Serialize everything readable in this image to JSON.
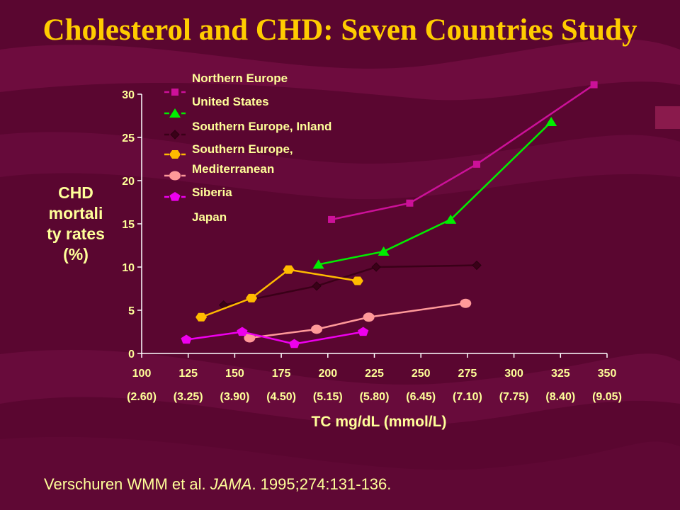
{
  "title": "Cholesterol and CHD: Seven Countries Study",
  "citation": {
    "authors": "Verschuren WMM et al. ",
    "journal": "JAMA",
    "details": ". 1995;274:131-136."
  },
  "colors": {
    "background": "#5a0630",
    "title": "#ffcc00",
    "text": "#ffff99",
    "axis": "#ffffff"
  },
  "chart_data": {
    "type": "line",
    "title": "",
    "xlabel": "TC mg/dL (mmol/L)",
    "ylabel_lines": [
      "CHD",
      "mortali",
      "ty rates",
      "(%)"
    ],
    "xlim": [
      100,
      350
    ],
    "ylim": [
      0,
      30
    ],
    "x_ticks": [
      100,
      125,
      150,
      175,
      200,
      225,
      250,
      275,
      300,
      325,
      350
    ],
    "x_tick_sublabels": [
      "(2.60)",
      "(3.25)",
      "(3.90)",
      "(4.50)",
      "(5.15)",
      "(5.80)",
      "(6.45)",
      "(7.10)",
      "(7.75)",
      "(8.40)",
      "(9.05)"
    ],
    "y_ticks": [
      0,
      5,
      10,
      15,
      20,
      25,
      30
    ],
    "grid": false,
    "legend_position": "top-left",
    "series": [
      {
        "name": "Northern Europe",
        "color": "#cc1199",
        "marker": "square",
        "points": [
          [
            202,
            15.5
          ],
          [
            244,
            17.4
          ],
          [
            280,
            21.9
          ],
          [
            343,
            31.1
          ]
        ]
      },
      {
        "name": "United States",
        "color": "#00ee00",
        "marker": "triangle",
        "points": [
          [
            195,
            10.3
          ],
          [
            230,
            11.8
          ],
          [
            266,
            15.5
          ],
          [
            320,
            26.8
          ]
        ]
      },
      {
        "name": "Southern Europe, Inland",
        "color": "#3a0018",
        "marker": "diamond",
        "points": [
          [
            144,
            5.6
          ],
          [
            194,
            7.8
          ],
          [
            226,
            10.0
          ],
          [
            280,
            10.2
          ]
        ]
      },
      {
        "name": "Southern Europe, Mediterranean",
        "legend_lines": [
          "Southern Europe,",
          "Mediterranean"
        ],
        "color": "#ffbb00",
        "marker": "hexagon",
        "points": [
          [
            132,
            4.2
          ],
          [
            159,
            6.4
          ],
          [
            179,
            9.7
          ],
          [
            216,
            8.4
          ]
        ]
      },
      {
        "name": "Siberia",
        "color": "#ff9999",
        "marker": "circle",
        "points": [
          [
            158,
            1.8
          ],
          [
            194,
            2.8
          ],
          [
            222,
            4.2
          ],
          [
            274,
            5.8
          ]
        ]
      },
      {
        "name": "Japan",
        "color": "#ee00ee",
        "marker": "pentagon",
        "points": [
          [
            124,
            1.6
          ],
          [
            154,
            2.5
          ],
          [
            182,
            1.1
          ],
          [
            219,
            2.5
          ]
        ]
      }
    ]
  }
}
